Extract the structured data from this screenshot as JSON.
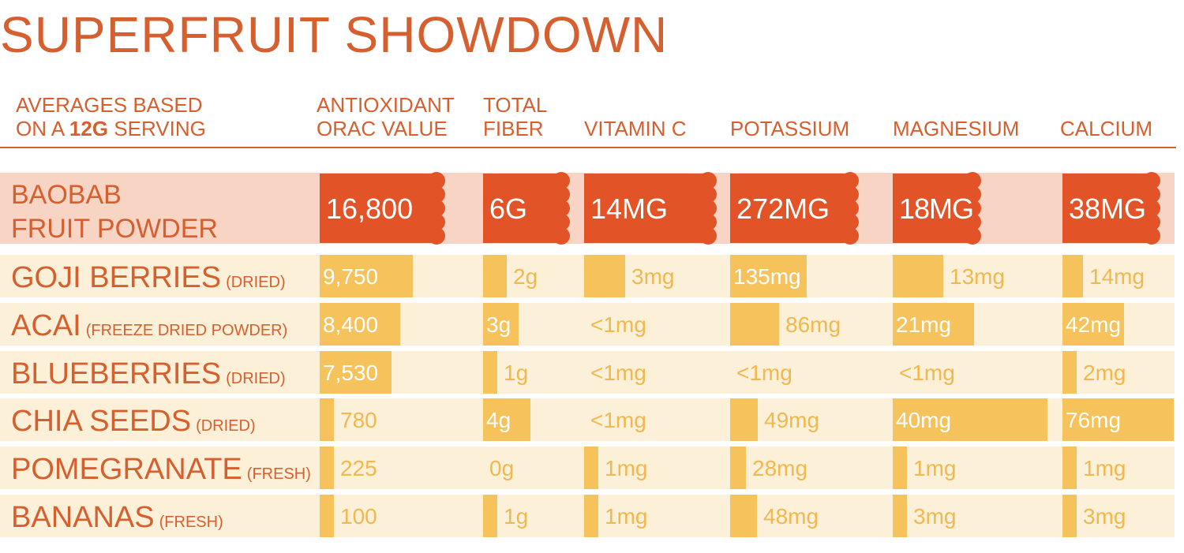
{
  "title": "SUPERFRUIT SHOWDOWN",
  "header": {
    "basis_line1": "AVERAGES BASED",
    "basis_line2_pre": "ON A ",
    "basis_line2_bold": "12G",
    "basis_line2_post": " SERVING"
  },
  "colors": {
    "title": "#d65f2f",
    "baobab_bar": "#e25428",
    "baobab_row_bg": "#f8d4c4",
    "other_bar": "#f5c25c",
    "other_row_bg": "#fdf0d8",
    "baobab_text": "#ffffff",
    "bar_text": "#ffffff",
    "outside_text": "#f0b84e"
  },
  "chart_data": {
    "type": "table",
    "title": "SUPERFRUIT SHOWDOWN",
    "columns": [
      {
        "key": "orac",
        "line1": "ANTIOXIDANT",
        "line2": "ORAC VALUE"
      },
      {
        "key": "fiber",
        "line1": "TOTAL",
        "line2": "FIBER"
      },
      {
        "key": "vitc",
        "line1": "",
        "line2": "VITAMIN C"
      },
      {
        "key": "potassium",
        "line1": "",
        "line2": "POTASSIUM"
      },
      {
        "key": "magnesium",
        "line1": "",
        "line2": "MAGNESIUM"
      },
      {
        "key": "calcium",
        "line1": "",
        "line2": "CALCIUM"
      }
    ],
    "rows": [
      {
        "name_line1": "BAOBAB",
        "name_line2": "FRUIT POWDER",
        "qualifier": "",
        "highlight": true,
        "values": [
          16800,
          6,
          14,
          272,
          18,
          38
        ],
        "labels": [
          "16,800",
          "6G",
          "14MG",
          "272MG",
          "18MG",
          "38MG"
        ]
      },
      {
        "name": "GOJI BERRIES",
        "qualifier": "(DRIED)",
        "values": [
          9750,
          2,
          3,
          135,
          13,
          14
        ],
        "labels": [
          "9,750",
          "2g",
          "3mg",
          "135mg",
          "13mg",
          "14mg"
        ]
      },
      {
        "name": "ACAI",
        "qualifier": "(FREEZE DRIED POWDER)",
        "values": [
          8400,
          3,
          0,
          86,
          21,
          42
        ],
        "labels": [
          "8,400",
          "3g",
          "<1mg",
          "86mg",
          "21mg",
          "42mg"
        ]
      },
      {
        "name": "BLUEBERRIES",
        "qualifier": "(DRIED)",
        "values": [
          7530,
          1,
          0,
          0,
          0,
          2
        ],
        "labels": [
          "7,530",
          "1g",
          "<1mg",
          "<1mg",
          "<1mg",
          "2mg"
        ]
      },
      {
        "name": "CHIA SEEDS",
        "qualifier": "(DRIED)",
        "values": [
          780,
          4,
          0,
          49,
          40,
          76
        ],
        "labels": [
          "780",
          "4g",
          "<1mg",
          "49mg",
          "40mg",
          "76mg"
        ]
      },
      {
        "name": "POMEGRANATE",
        "qualifier": "(FRESH)",
        "values": [
          225,
          0,
          1,
          28,
          1,
          1
        ],
        "labels": [
          "225",
          "0g",
          "1mg",
          "28mg",
          "1mg",
          "1mg"
        ]
      },
      {
        "name": "BANANAS",
        "qualifier": "(FRESH)",
        "values": [
          100,
          1,
          1,
          48,
          3,
          3
        ],
        "labels": [
          "100",
          "1g",
          "1mg",
          "48mg",
          "3mg",
          "3mg"
        ]
      }
    ]
  }
}
